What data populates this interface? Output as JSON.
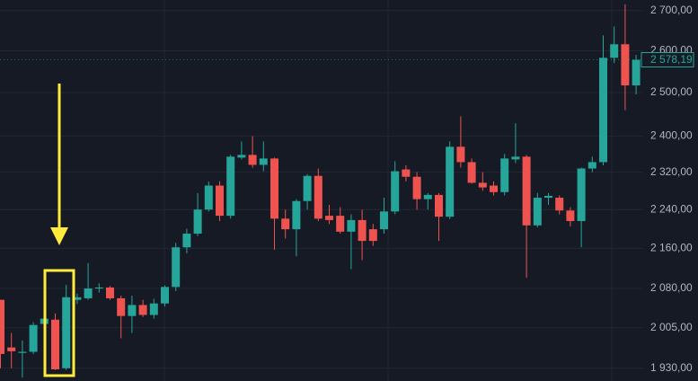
{
  "chart_data": {
    "type": "candlestick",
    "log_scale": true,
    "grid": true,
    "up_color": "#26a69a",
    "down_color": "#ef5350",
    "ylim": [
      1907,
      2727
    ],
    "yticks": [
      {
        "value": 2700,
        "label": "2 700,00"
      },
      {
        "value": 2600,
        "label": "2 600,00"
      },
      {
        "value": 2500,
        "label": "2 500,00"
      },
      {
        "value": 2400,
        "label": "2 400,00"
      },
      {
        "value": 2320,
        "label": "2 320,00"
      },
      {
        "value": 2240,
        "label": "2 240,00"
      },
      {
        "value": 2160,
        "label": "2 160,00"
      },
      {
        "value": 2080,
        "label": "2 080,00"
      },
      {
        "value": 2005,
        "label": "2 005,00"
      },
      {
        "value": 1930,
        "label": "1 930,00"
      }
    ],
    "last_price": {
      "value": 2578.19,
      "label": "2 578,19"
    },
    "open": [
      2058,
      1968,
      1958,
      1960,
      2012,
      2020,
      1930,
      2058,
      2061,
      2080,
      2082,
      2061,
      2027,
      2048,
      2029,
      2051,
      2083,
      2162,
      2190,
      2240,
      2291,
      2227,
      2352,
      2358,
      2336,
      2350,
      2221,
      2199,
      2258,
      2312,
      2227,
      2227,
      2194,
      2218,
      2199,
      2199,
      2236,
      2326,
      2310,
      2262,
      2271,
      2225,
      2376,
      2342,
      2297,
      2291,
      2277,
      2348,
      2354,
      2207,
      2265,
      2265,
      2238,
      2216,
      2328,
      2342,
      2583,
      2616,
      2517
    ],
    "high": [
      2058,
      1995,
      1981,
      2015,
      2066,
      2032,
      2087,
      2070,
      2130,
      2090,
      2085,
      2066,
      2066,
      2058,
      2060,
      2086,
      2171,
      2200,
      2275,
      2300,
      2300,
      2358,
      2388,
      2400,
      2388,
      2352,
      2240,
      2262,
      2316,
      2328,
      2250,
      2245,
      2230,
      2240,
      2210,
      2265,
      2344,
      2335,
      2320,
      2275,
      2275,
      2388,
      2445,
      2350,
      2320,
      2300,
      2360,
      2429,
      2358,
      2275,
      2275,
      2270,
      2245,
      2330,
      2354,
      2638,
      2660,
      2716,
      2590
    ],
    "low": [
      1930,
      1930,
      1913,
      1956,
      1995,
      1927,
      1927,
      2050,
      2058,
      2072,
      2058,
      1985,
      1995,
      2025,
      2022,
      2045,
      2075,
      2150,
      2185,
      2236,
      2216,
      2221,
      2348,
      2330,
      2322,
      2157,
      2180,
      2144,
      2240,
      2216,
      2210,
      2190,
      2118,
      2136,
      2165,
      2190,
      2230,
      2300,
      2240,
      2240,
      2175,
      2220,
      2330,
      2295,
      2280,
      2270,
      2270,
      2340,
      2101,
      2203,
      2250,
      2230,
      2205,
      2162,
      2320,
      2335,
      2570,
      2459,
      2496
    ],
    "close": [
      1956,
      1961,
      1960,
      2010,
      2022,
      1928,
      2063,
      2063,
      2080,
      2082,
      2061,
      2027,
      2048,
      2029,
      2051,
      2083,
      2162,
      2190,
      2240,
      2291,
      2227,
      2354,
      2358,
      2336,
      2350,
      2221,
      2199,
      2258,
      2312,
      2221,
      2218,
      2194,
      2218,
      2175,
      2175,
      2236,
      2322,
      2310,
      2262,
      2271,
      2225,
      2376,
      2342,
      2297,
      2287,
      2277,
      2350,
      2354,
      2207,
      2265,
      2269,
      2238,
      2216,
      2328,
      2342,
      2583,
      2616,
      2517,
      2578.19
    ]
  }
}
